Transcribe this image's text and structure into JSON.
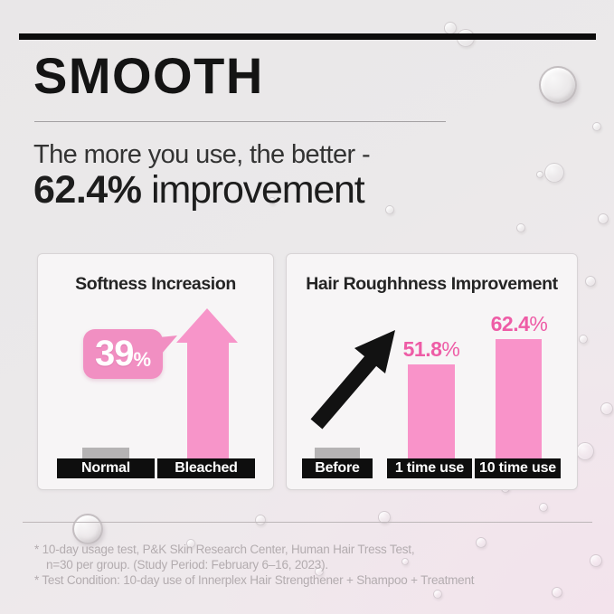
{
  "page": {
    "title": "SMOOTH",
    "subtitle_line1": "The more you use, the better -",
    "highlight_value": "62.4%",
    "highlight_rest": " improvement"
  },
  "charts": {
    "softness": {
      "title": "Softness Increasion",
      "badge": {
        "value": "39",
        "unit": "%"
      },
      "labels": [
        "Normal",
        "Bleached"
      ]
    },
    "roughness": {
      "title": "Hair Roughhness Improvement",
      "values": [
        {
          "num": "51.8",
          "unit": "%"
        },
        {
          "num": "62.4",
          "unit": "%"
        }
      ],
      "labels": [
        "Before",
        "1 time use",
        "10 time use"
      ]
    }
  },
  "chart_data": [
    {
      "type": "bar",
      "title": "Softness Increasion",
      "categories": [
        "Normal",
        "Bleached"
      ],
      "values": [
        0,
        39
      ],
      "value_labels": [
        "",
        "39%"
      ],
      "unit": "%",
      "legend": false,
      "axes_shown": false,
      "note": "Normal shown as flat gray baseline bar; Bleached shown as tall pink upward arrow with a 39% callout badge"
    },
    {
      "type": "bar",
      "title": "Hair Roughhness Improvement",
      "categories": [
        "Before",
        "1 time use",
        "10 time use"
      ],
      "values": [
        0,
        51.8,
        62.4
      ],
      "value_labels": [
        "",
        "51.8%",
        "62.4%"
      ],
      "unit": "%",
      "legend": false,
      "axes_shown": false,
      "note": "Before shown as flat gray baseline bar with black upward trend arrow; pink bars with values labeled above"
    }
  ],
  "footnotes": {
    "line1": "* 10-day usage test, P&K Skin Research Center, Human Hair Tress Test,",
    "line2": "n=30 per group. (Study Period: February 6–16, 2023).",
    "line3": "* Test Condition: 10-day use of Innerplex Hair Strengthener + Shampoo + Treatment"
  },
  "colors": {
    "pink_bar": "#f993c9",
    "pink_badge": "#f18fc2",
    "pink_text": "#ee5ca6",
    "black": "#0e0e0e",
    "gray_baseline": "#b5b3b4",
    "footnote_gray": "#b3acaf"
  }
}
